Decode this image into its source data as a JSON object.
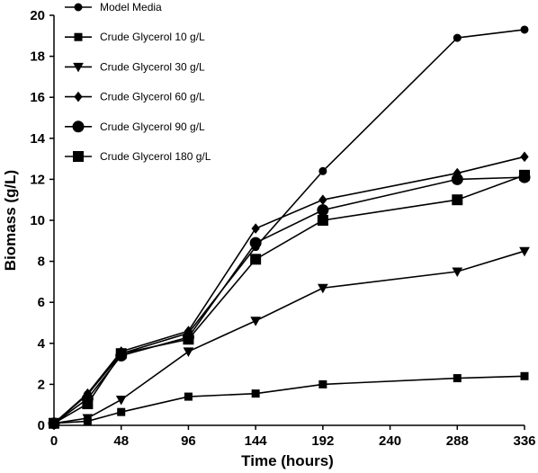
{
  "chart_data": {
    "type": "line",
    "title": "",
    "xlabel": "Time (hours)",
    "ylabel": "Biomass (g/L)",
    "xlim": [
      0,
      336
    ],
    "ylim": [
      0,
      20
    ],
    "xticks": [
      0,
      48,
      96,
      144,
      192,
      240,
      288,
      336
    ],
    "yticks": [
      0,
      2,
      4,
      6,
      8,
      10,
      12,
      14,
      16,
      18,
      20
    ],
    "grid": false,
    "legend_position": "top-left",
    "series": [
      {
        "name": "Model Media",
        "marker": "circle-small",
        "x": [
          0,
          24,
          48,
          96,
          144,
          192,
          288,
          336
        ],
        "y": [
          0.1,
          1.5,
          3.5,
          4.5,
          8.7,
          12.4,
          18.9,
          19.3
        ]
      },
      {
        "name": "Crude Glycerol 10 g/L",
        "marker": "square-small",
        "x": [
          0,
          24,
          48,
          96,
          144,
          192,
          288,
          336
        ],
        "y": [
          0.1,
          0.2,
          0.65,
          1.4,
          1.55,
          2.0,
          2.3,
          2.4
        ]
      },
      {
        "name": "Crude Glycerol 30 g/L",
        "marker": "triangle-down",
        "x": [
          0,
          24,
          48,
          96,
          144,
          192,
          288,
          336
        ],
        "y": [
          0.1,
          0.35,
          1.25,
          3.6,
          5.1,
          6.7,
          7.5,
          8.5
        ]
      },
      {
        "name": "Crude Glycerol 60 g/L",
        "marker": "diamond",
        "x": [
          0,
          24,
          48,
          96,
          144,
          192,
          288,
          336
        ],
        "y": [
          0.1,
          1.55,
          3.6,
          4.6,
          9.6,
          11.0,
          12.3,
          13.1
        ]
      },
      {
        "name": "Crude Glycerol 90 g/L",
        "marker": "circle-large",
        "x": [
          0,
          24,
          48,
          96,
          144,
          192,
          288,
          336
        ],
        "y": [
          0.1,
          1.3,
          3.4,
          4.3,
          8.9,
          10.5,
          12.0,
          12.1
        ]
      },
      {
        "name": "Crude Glycerol 180 g/L",
        "marker": "square-large",
        "x": [
          0,
          24,
          48,
          96,
          144,
          192,
          288,
          336
        ],
        "y": [
          0.1,
          1.05,
          3.5,
          4.2,
          8.1,
          10.0,
          11.0,
          12.2
        ]
      }
    ]
  }
}
